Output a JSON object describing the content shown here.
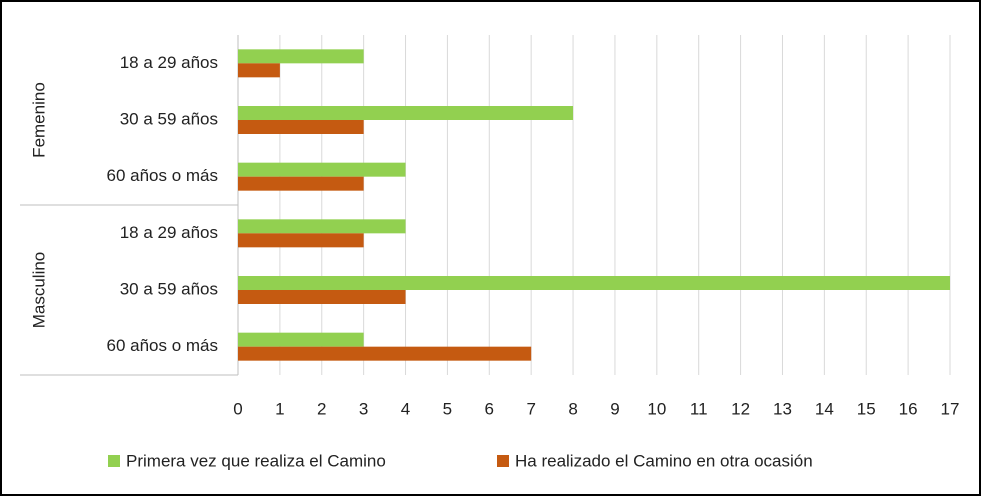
{
  "chart_data": {
    "type": "bar",
    "orientation": "horizontal",
    "groups": [
      {
        "name": "Femenino",
        "categories": [
          "18 a 29 años",
          "30 a 59 años",
          "60 años o más"
        ]
      },
      {
        "name": "Masculino",
        "categories": [
          "18 a 29 años",
          "30 a 59 años",
          "60 años o más"
        ]
      }
    ],
    "series": [
      {
        "name": "Primera vez que realiza el Camino",
        "color": "#92d050",
        "values": [
          3,
          8,
          4,
          4,
          17,
          3
        ]
      },
      {
        "name": "Ha realizado el Camino en otra ocasión",
        "color": "#c55a11",
        "values": [
          1,
          3,
          3,
          3,
          4,
          7
        ]
      }
    ],
    "xlim": [
      0,
      17
    ],
    "xticks": [
      0,
      1,
      2,
      3,
      4,
      5,
      6,
      7,
      8,
      9,
      10,
      11,
      12,
      13,
      14,
      15,
      16,
      17
    ],
    "grid": true,
    "legend": "bottom"
  }
}
